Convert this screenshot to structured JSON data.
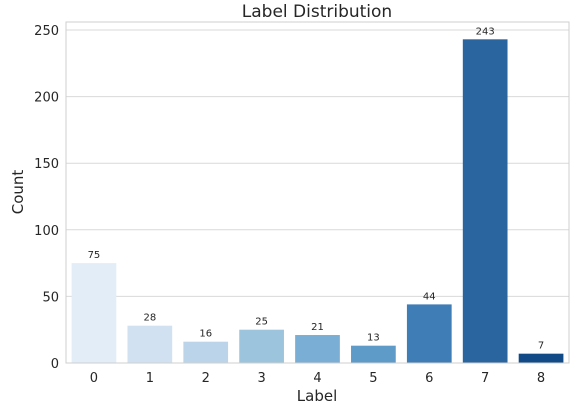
{
  "chart_data": {
    "type": "bar",
    "title": "Label Distribution",
    "xlabel": "Label",
    "ylabel": "Count",
    "categories": [
      "0",
      "1",
      "2",
      "3",
      "4",
      "5",
      "6",
      "7",
      "8"
    ],
    "values": [
      75,
      28,
      16,
      25,
      21,
      13,
      44,
      243,
      7
    ],
    "data_labels": [
      "75",
      "28",
      "16",
      "25",
      "21",
      "13",
      "44",
      "243",
      "7"
    ],
    "yticks": [
      0,
      50,
      100,
      150,
      200,
      250
    ],
    "ytick_labels": [
      "0",
      "50",
      "100",
      "150",
      "200",
      "250"
    ],
    "ylim": [
      0,
      256
    ],
    "grid": true,
    "legend": "none",
    "colors": [
      "#e3edf8",
      "#d1e1f1",
      "#bcd4ea",
      "#9cc4dd",
      "#7baed4",
      "#5e9bc9",
      "#3e7db5",
      "#2a65a0",
      "#124a87"
    ]
  }
}
